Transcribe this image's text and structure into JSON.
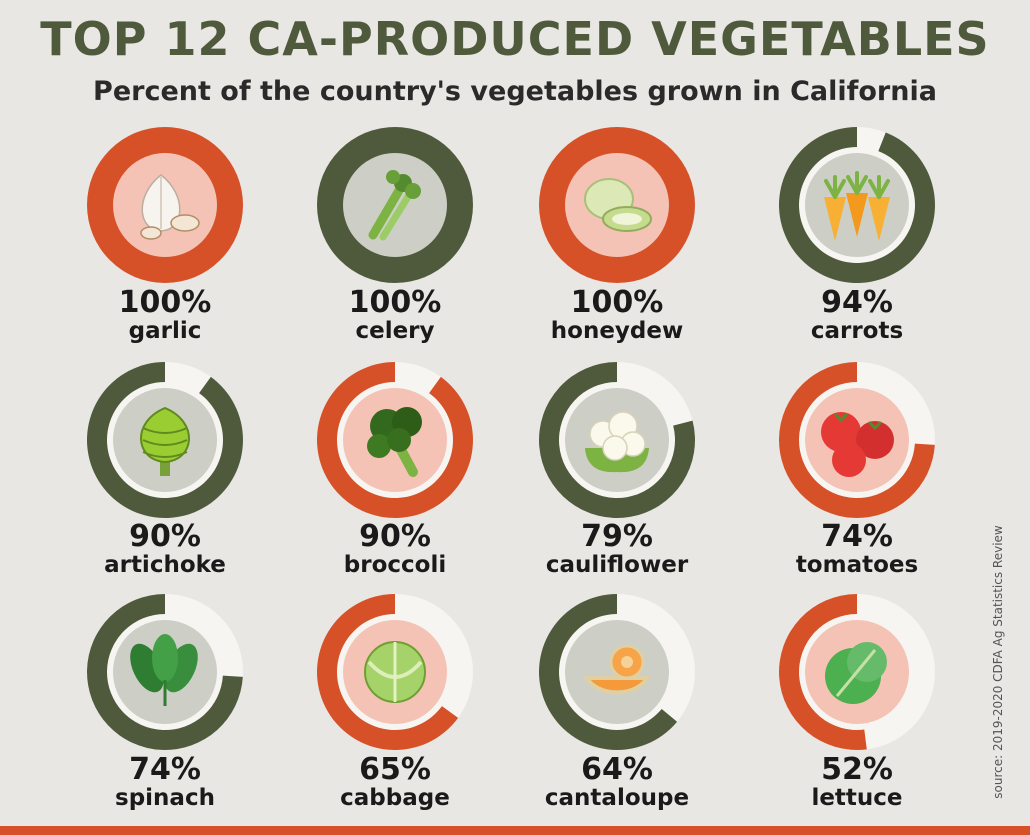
{
  "header": {
    "title": "TOP 12 CA-PRODUCED VEGETABLES",
    "subtitle": "Percent of the country's vegetables grown in California"
  },
  "source": "source: 2019-2020 CDFA Ag Statistics Review",
  "colors": {
    "green": "#4f5a3c",
    "orange": "#d65128",
    "orange_inner": "#f4c3b5",
    "green_inner": "#cdcfc6",
    "background": "#e8e7e4"
  },
  "chart_data": {
    "type": "pie",
    "title": "TOP 12 CA-PRODUCED VEGETABLES",
    "subtitle": "Percent of the country's vegetables grown in California",
    "items": [
      {
        "name": "garlic",
        "label": "100%",
        "value": 100,
        "color": "orange",
        "icon": "garlic-icon"
      },
      {
        "name": "celery",
        "label": "100%",
        "value": 100,
        "color": "green",
        "icon": "celery-icon"
      },
      {
        "name": "honeydew",
        "label": "100%",
        "value": 100,
        "color": "orange",
        "icon": "honeydew-icon"
      },
      {
        "name": "carrots",
        "label": "94%",
        "value": 94,
        "color": "green",
        "icon": "carrots-icon"
      },
      {
        "name": "artichoke",
        "label": "90%",
        "value": 90,
        "color": "green",
        "icon": "artichoke-icon"
      },
      {
        "name": "broccoli",
        "label": "90%",
        "value": 90,
        "color": "orange",
        "icon": "broccoli-icon"
      },
      {
        "name": "cauliflower",
        "label": "79%",
        "value": 79,
        "color": "green",
        "icon": "cauliflower-icon"
      },
      {
        "name": "tomatoes",
        "label": "74%",
        "value": 74,
        "color": "orange",
        "icon": "tomatoes-icon"
      },
      {
        "name": "spinach",
        "label": "74%",
        "value": 74,
        "color": "green",
        "icon": "spinach-icon"
      },
      {
        "name": "cabbage",
        "label": "65%",
        "value": 65,
        "color": "orange",
        "icon": "cabbage-icon"
      },
      {
        "name": "cantaloupe",
        "label": "64%",
        "value": 64,
        "color": "green",
        "icon": "cantaloupe-icon"
      },
      {
        "name": "lettuce",
        "label": "52%",
        "value": 52,
        "color": "orange",
        "icon": "lettuce-icon"
      }
    ]
  }
}
